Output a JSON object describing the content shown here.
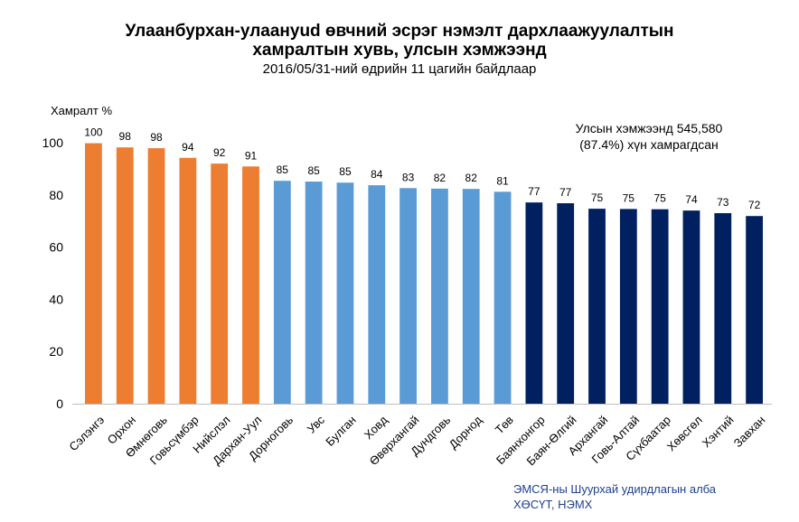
{
  "header": {
    "title_line1": "Улаанбурхан-улаануud өвчний эсрэг нэмэлт дархлаажуулалтын",
    "title_line2": "хамралтын хувь, улсын хэмжээнд",
    "subtitle": "2016/05/31-ний өдрийн 11 цагийн байдлаар"
  },
  "annotation": {
    "line1": "Улсын хэмжээнд  545,580",
    "line2": "(87.4%) хүн хамрагдсан"
  },
  "source": {
    "line1": "ЭМСЯ-ны Шуурхай удирдлагын алба",
    "line2": "ХӨСҮТ, НЭМХ"
  },
  "colors": {
    "orange": "#ED7D31",
    "light_blue": "#5B9BD5",
    "navy": "#002060",
    "gridline": "#d9d9d9",
    "axis": "#bfbfbf"
  },
  "chart_data": {
    "type": "bar",
    "ylabel": "Хамралт %",
    "xlabel": "",
    "ylim": [
      0,
      100
    ],
    "yticks": [
      0,
      20,
      40,
      60,
      80,
      100
    ],
    "grid": false,
    "legend": "none",
    "categories": [
      "Сэлэнгэ",
      "Орхон",
      "Өмнөговь",
      "Говьсүмбэр",
      "Нийслэл",
      "Дархан-Уул",
      "Дорноговь",
      "Увс",
      "Булган",
      "Ховд",
      "Өвөрхангай",
      "Дундговь",
      "Дорнод",
      "Төв",
      "Баянхонгор",
      "Баян-Өлгий",
      "Архангай",
      "Говь-Алтай",
      "Сүхбаатар",
      "Хөвсгөл",
      "Хэнтий",
      "Завхан"
    ],
    "values": [
      99.8,
      98.2,
      97.9,
      94.2,
      92.0,
      90.9,
      85.4,
      85.1,
      84.7,
      83.7,
      82.6,
      82.4,
      82.3,
      81.2,
      77.1,
      76.8,
      74.7,
      74.6,
      74.5,
      74.0,
      73.0,
      71.9
    ],
    "data_labels": [
      "100",
      "98",
      "98",
      "94",
      "92",
      "91",
      "85",
      "85",
      "85",
      "84",
      "83",
      "82",
      "82",
      "81",
      "77",
      "77",
      "75",
      "75",
      "75",
      "74",
      "73",
      "72"
    ],
    "bar_groups": [
      "orange",
      "orange",
      "orange",
      "orange",
      "orange",
      "orange",
      "light_blue",
      "light_blue",
      "light_blue",
      "light_blue",
      "light_blue",
      "light_blue",
      "light_blue",
      "light_blue",
      "navy",
      "navy",
      "navy",
      "navy",
      "navy",
      "navy",
      "navy",
      "navy"
    ]
  }
}
